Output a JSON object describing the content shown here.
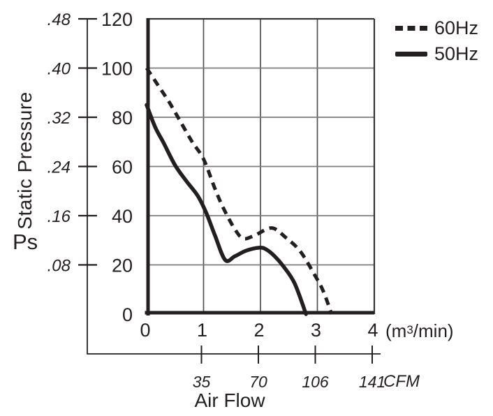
{
  "chart_data": {
    "type": "line",
    "title": "",
    "xlabel": "Air Flow",
    "grid": true,
    "legend_position": "top-right",
    "x_axis": {
      "ticks": [
        "0",
        "1",
        "2",
        "3",
        "4"
      ],
      "values": [
        0,
        1,
        2,
        3,
        4
      ],
      "range": [
        0,
        4
      ],
      "unit_parts": {
        "open": "(m",
        "sup": "3",
        "close": "/min)"
      }
    },
    "x_secondary_axis": {
      "unit": "CFM",
      "ticks": [
        "35",
        "70",
        "106",
        "141"
      ],
      "positions_m3min": [
        1,
        2,
        3,
        4
      ]
    },
    "y_axis_inner": {
      "ticks": [
        "120",
        "100",
        "80",
        "60",
        "40",
        "20",
        "0"
      ],
      "values": [
        120,
        100,
        80,
        60,
        40,
        20,
        0
      ],
      "range": [
        0,
        120
      ]
    },
    "y_axis_outer": {
      "title": "Static Pressure",
      "symbol": "Ps",
      "ticks": [
        ".48",
        ".40",
        ".32",
        ".24",
        ".16",
        ".08"
      ],
      "values": [
        0.48,
        0.4,
        0.32,
        0.24,
        0.16,
        0.08
      ]
    },
    "series": [
      {
        "name": "60Hz",
        "style": "dashed",
        "points": [
          [
            0,
            100
          ],
          [
            0.2,
            93
          ],
          [
            0.4,
            86
          ],
          [
            0.6,
            78
          ],
          [
            0.8,
            70
          ],
          [
            1.0,
            63
          ],
          [
            1.2,
            51
          ],
          [
            1.35,
            43
          ],
          [
            1.55,
            34.5
          ],
          [
            1.7,
            30.7
          ],
          [
            1.9,
            32
          ],
          [
            2.2,
            35
          ],
          [
            2.45,
            31
          ],
          [
            2.7,
            25.5
          ],
          [
            2.95,
            16
          ],
          [
            3.1,
            9.5
          ],
          [
            3.25,
            0
          ]
        ]
      },
      {
        "name": "50Hz",
        "style": "solid",
        "points": [
          [
            0,
            85
          ],
          [
            0.15,
            76
          ],
          [
            0.3,
            69.5
          ],
          [
            0.5,
            60.5
          ],
          [
            0.7,
            54
          ],
          [
            0.9,
            48
          ],
          [
            1.05,
            41
          ],
          [
            1.2,
            32
          ],
          [
            1.38,
            22
          ],
          [
            1.55,
            23.5
          ],
          [
            1.75,
            25.8
          ],
          [
            1.98,
            27
          ],
          [
            2.1,
            26.3
          ],
          [
            2.25,
            23.5
          ],
          [
            2.4,
            19.5
          ],
          [
            2.6,
            12.5
          ],
          [
            2.8,
            0
          ]
        ]
      }
    ],
    "colors": {
      "ink": "#231f20",
      "grid_horizontal": "#7d7d7d",
      "grid_vertical": "#4f4f4f",
      "border": "#333333",
      "background": "#ffffff"
    }
  }
}
